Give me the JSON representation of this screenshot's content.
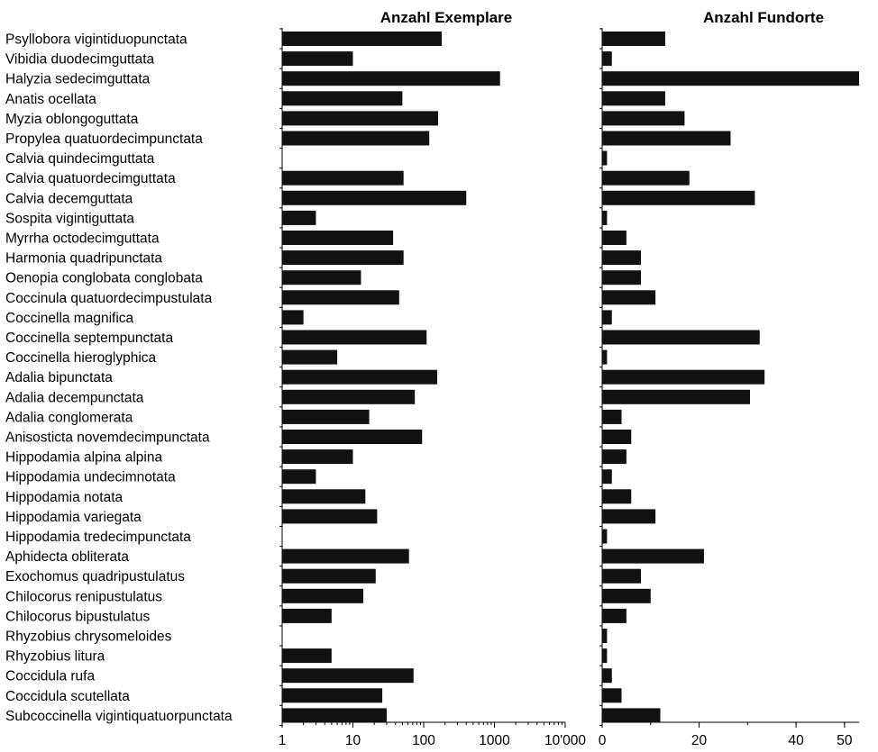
{
  "chart_data": {
    "type": "bar",
    "orientation": "horizontal",
    "categories": [
      "Psyllobora vigintiduopunctata",
      "Vibidia duodecimguttata",
      "Halyzia sedecimguttata",
      "Anatis ocellata",
      "Myzia oblongoguttata",
      "Propylea quatuordecimpunctata",
      "Calvia quindecimguttata",
      "Calvia quatuordecimguttata",
      "Calvia decemguttata",
      "Sospita vigintiguttata",
      "Myrrha octodecimguttata",
      "Harmonia quadripunctata",
      "Oenopia conglobata conglobata",
      "Coccinula quatuordecimpustulata",
      "Coccinella magnifica",
      "Coccinella septempunctata",
      "Coccinella hieroglyphica",
      "Adalia bipunctata",
      "Adalia decempunctata",
      "Adalia conglomerata",
      "Anisosticta novemdecimpunctata",
      "Hippodamia alpina alpina",
      "Hippodamia undecimnotata",
      "Hippodamia notata",
      "Hippodamia variegata",
      "Hippodamia tredecimpunctata",
      "Aphidecta obliterata",
      "Exochomus quadripustulatus",
      "Chilocorus renipustulatus",
      "Chilocorus bipustulatus",
      "Rhyzobius chrysomeloides",
      "Rhyzobius litura",
      "Coccidula rufa",
      "Coccidula scutellata",
      "Subcoccinella vigintiquatuorpunctata"
    ],
    "panels": [
      {
        "title": "Anzahl Exemplare",
        "scale": "log",
        "xlim": [
          1,
          10000
        ],
        "ticks": [
          1,
          10,
          100,
          1000,
          10000
        ],
        "tick_labels": [
          "1",
          "10",
          "100",
          "1000",
          "10'000"
        ],
        "values": [
          180,
          10,
          1200,
          50,
          160,
          120,
          1,
          52,
          400,
          3,
          37,
          52,
          13,
          45,
          2,
          110,
          6,
          155,
          75,
          17,
          95,
          10,
          3,
          15,
          22,
          1,
          62,
          21,
          14,
          5,
          1,
          5,
          72,
          26,
          30
        ]
      },
      {
        "title": "Anzahl Fundorte",
        "scale": "linear",
        "xlim": [
          0,
          53
        ],
        "ticks": [
          0,
          20,
          40,
          50
        ],
        "tick_labels": [
          "0",
          "20",
          "40",
          "50"
        ],
        "values": [
          13,
          2,
          53,
          13,
          17,
          26.5,
          1,
          18,
          31.5,
          1,
          5,
          8,
          8,
          11,
          2,
          32.5,
          1,
          33.5,
          30.5,
          4,
          6,
          5,
          2,
          6,
          11,
          1,
          21,
          8,
          10,
          5,
          1,
          1,
          2,
          4,
          12
        ]
      }
    ]
  }
}
